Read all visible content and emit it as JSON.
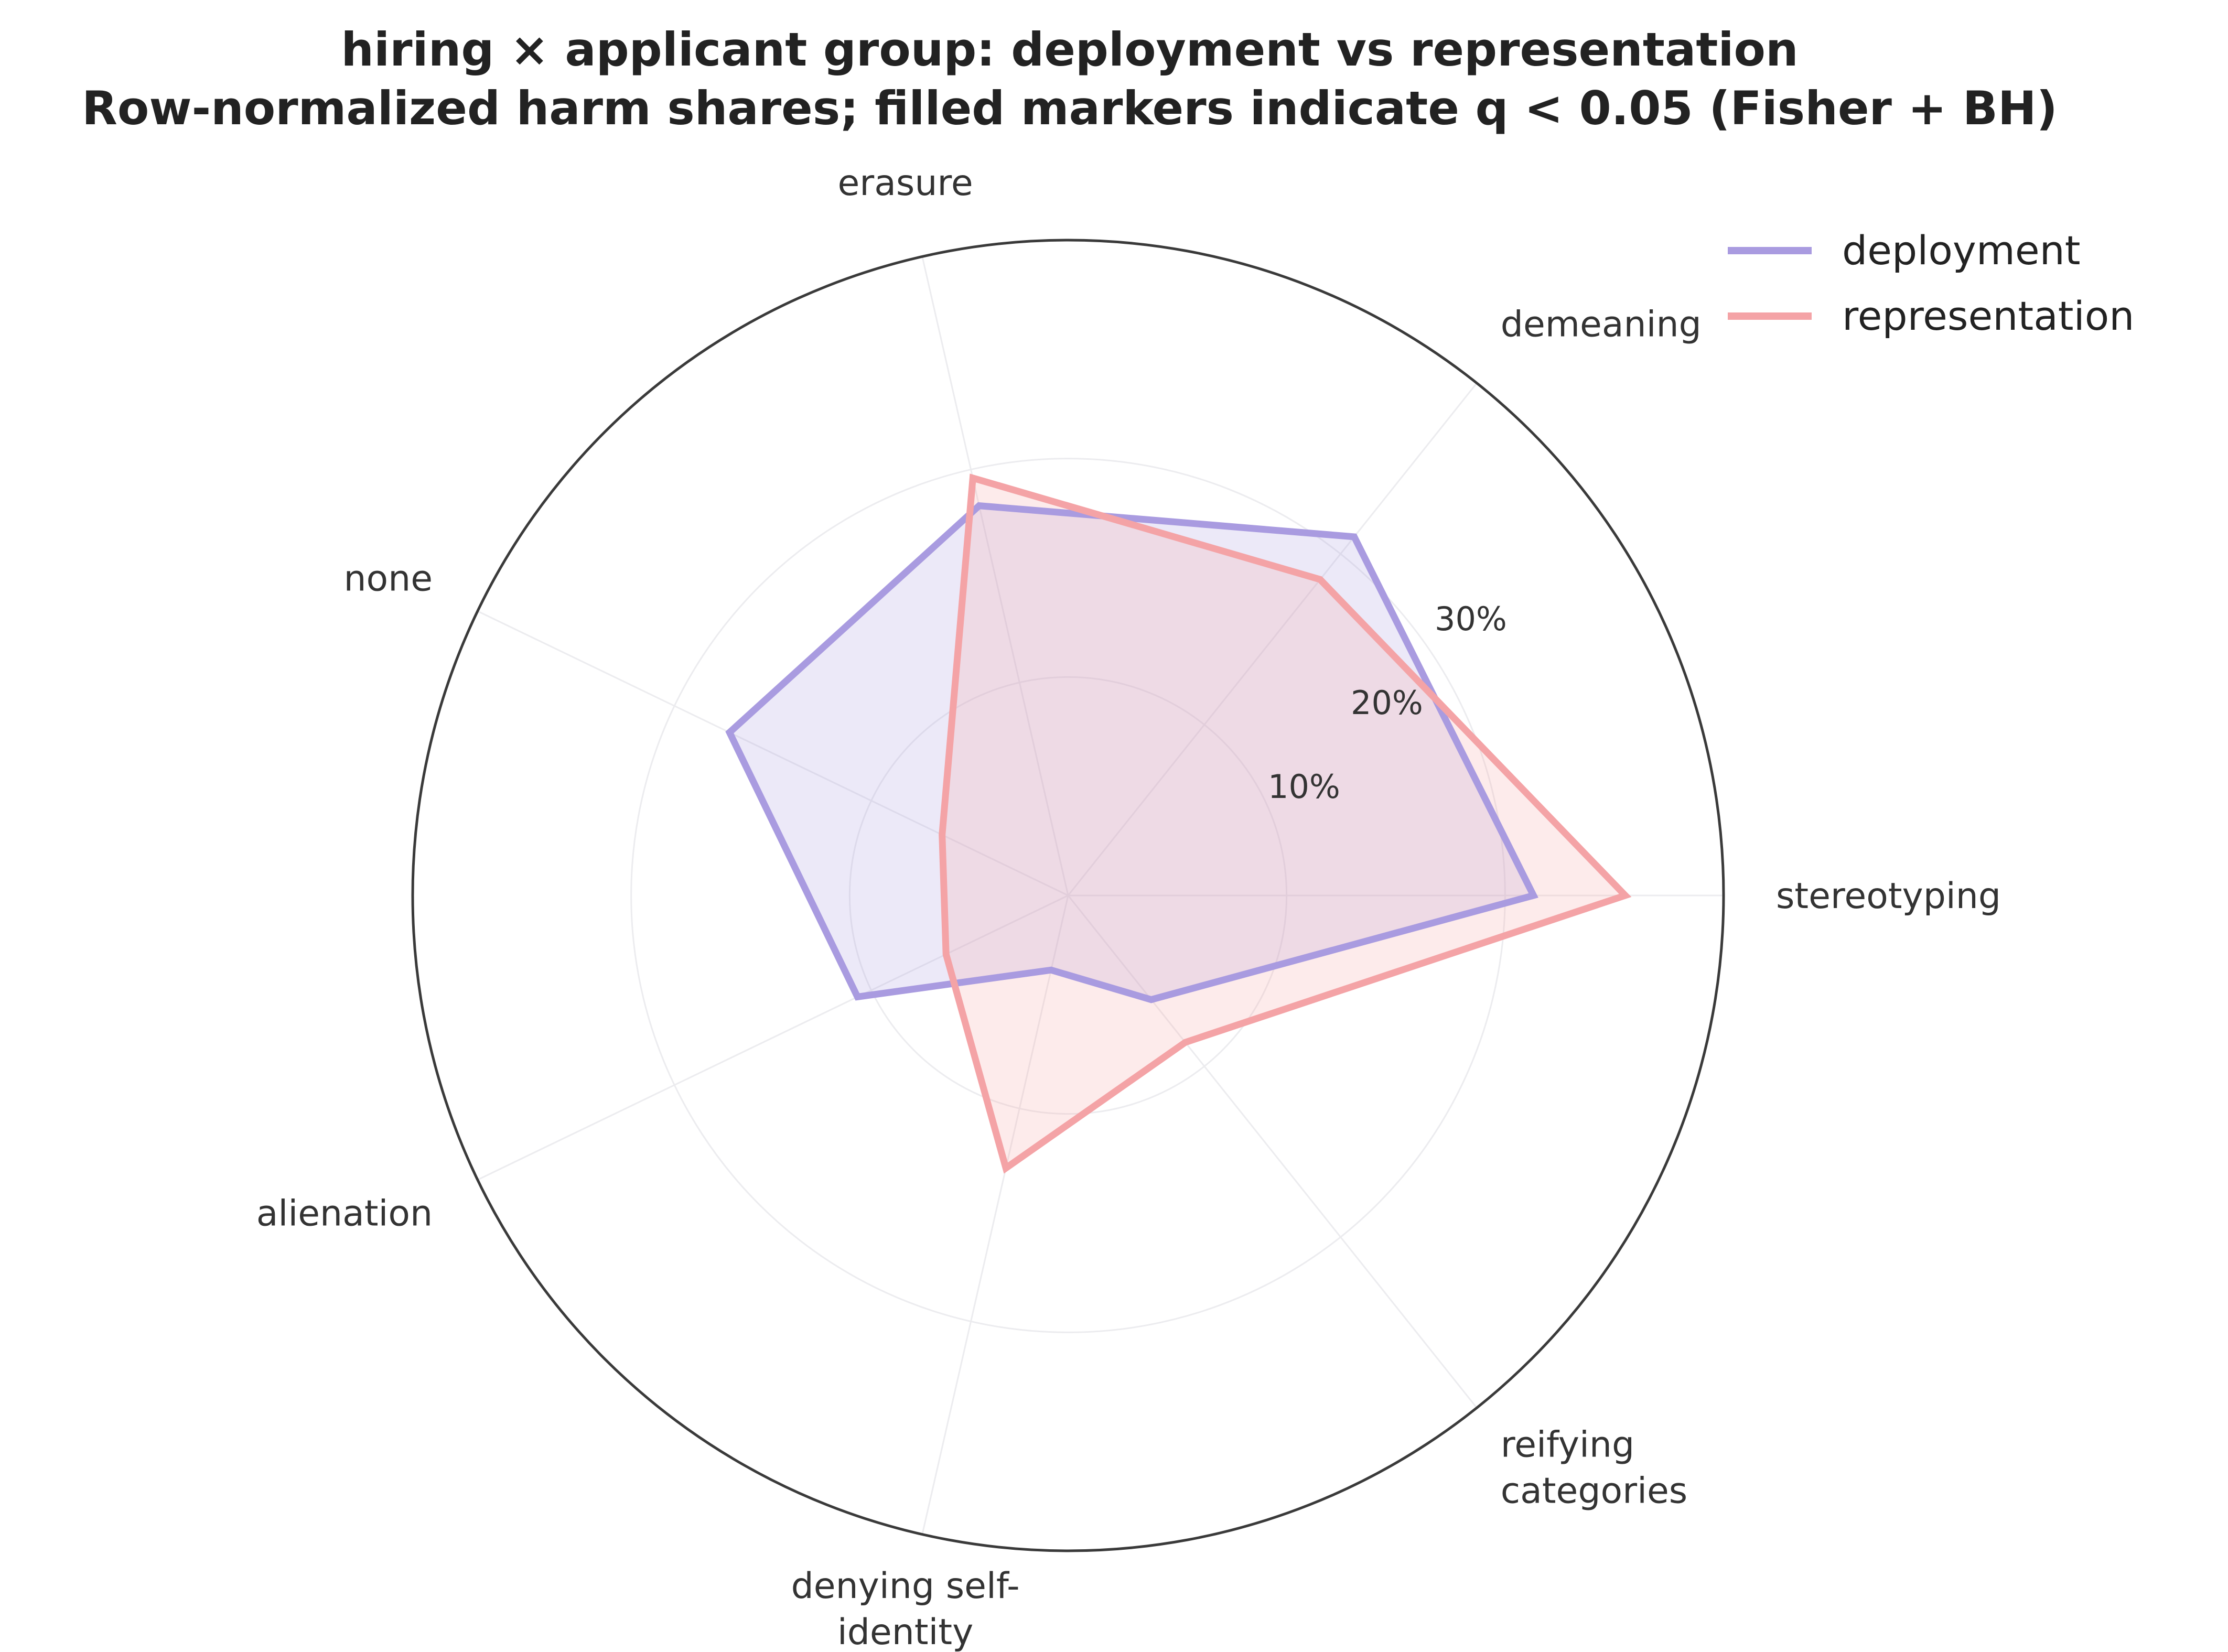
{
  "chart_data": {
    "type": "radar",
    "title": "hiring × applicant group: deployment vs representation",
    "subtitle": "Row-normalized harm shares; filled markers indicate q < 0.05 (Fisher + BH)",
    "categories": [
      [
        "stereotyping"
      ],
      [
        "demeaning"
      ],
      [
        "erasure"
      ],
      [
        "none"
      ],
      [
        "alienation"
      ],
      [
        "denying self-",
        "identity"
      ],
      [
        "reifying",
        "categories"
      ]
    ],
    "rmax": 30,
    "rticks": [
      10,
      20,
      30
    ],
    "rtick_labels": [
      "10%",
      "20%",
      "30%"
    ],
    "series": [
      {
        "name": "deployment",
        "color": "#a99be0",
        "values": [
          21.3,
          21.0,
          18.3,
          17.2,
          10.7,
          3.5,
          6.1
        ]
      },
      {
        "name": "representation",
        "color": "#f4a3a6",
        "values": [
          25.5,
          18.5,
          19.6,
          6.4,
          6.2,
          12.8,
          8.6
        ]
      }
    ],
    "legend_position": "top-right",
    "grid": true
  }
}
